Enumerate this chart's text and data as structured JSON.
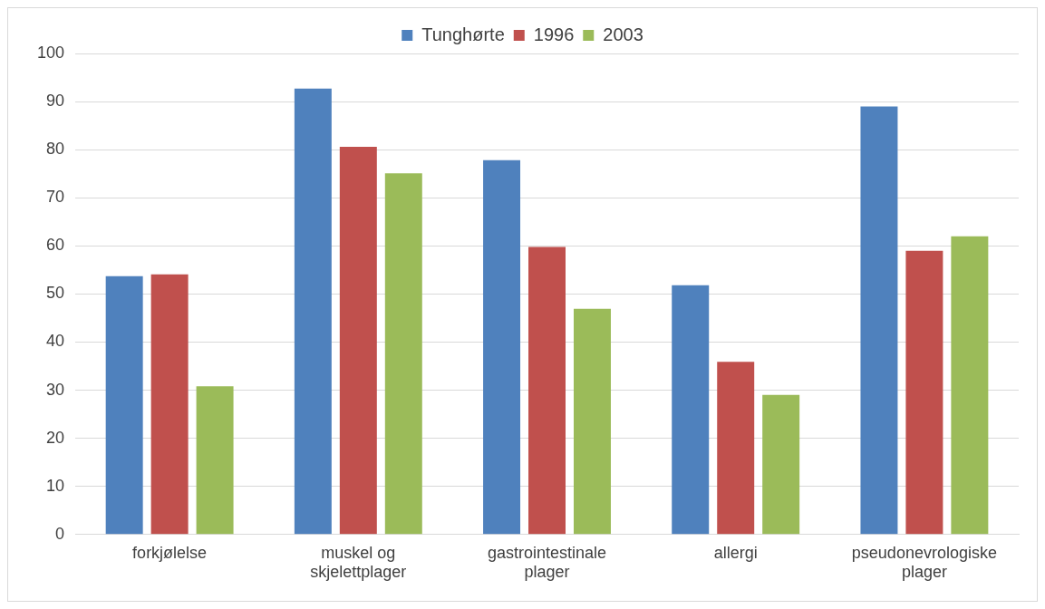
{
  "chart_data": {
    "type": "bar",
    "categories": [
      "forkjølelse",
      "muskel og skjelettplager",
      "gastrointestinale plager",
      "allergi",
      "pseudonevrologiske plager"
    ],
    "series": [
      {
        "name": "Tunghørte",
        "color": "#4f81bd",
        "values": [
          53.7,
          92.7,
          77.8,
          51.8,
          89.0
        ]
      },
      {
        "name": "1996",
        "color": "#c0504d",
        "values": [
          54.1,
          80.6,
          59.8,
          35.9,
          59.0
        ]
      },
      {
        "name": "2003",
        "color": "#9bbb59",
        "values": [
          30.8,
          75.1,
          46.9,
          29.0,
          62.0
        ]
      }
    ],
    "ylim": [
      0,
      100
    ],
    "yticks": [
      0,
      10,
      20,
      30,
      40,
      50,
      60,
      70,
      80,
      90,
      100
    ],
    "grid": "y",
    "legend": "top"
  }
}
